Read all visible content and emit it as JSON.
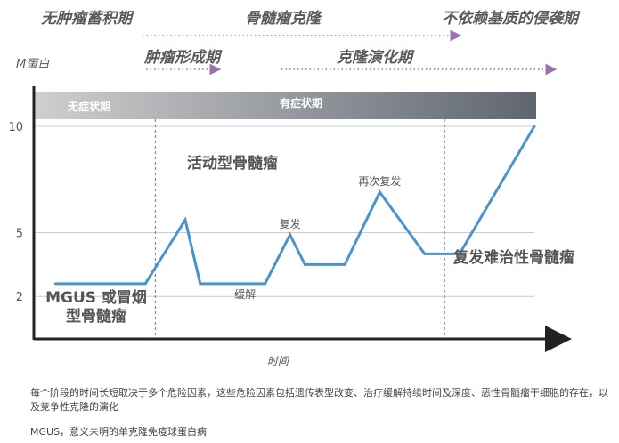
{
  "phases_row1": [
    {
      "label": "无肿瘤蓄积期"
    },
    {
      "label": "骨髓瘤克隆"
    },
    {
      "label": "不依赖基质的侵袭期"
    }
  ],
  "phases_row2": [
    {
      "label": "肿瘤形成期"
    },
    {
      "label": "克隆演化期"
    }
  ],
  "band": {
    "left": "无症状期",
    "right": "有症状期",
    "color_left": "#cfcfcf",
    "color_right": "#5f6670"
  },
  "colors": {
    "line": "#4a94cc",
    "arrow": "#9b6fb5",
    "axis": "#222222",
    "grid": "#cccccc"
  },
  "chart_data": {
    "type": "line",
    "ylabel": "M蛋白",
    "xlabel": "时间",
    "yticks": [
      2,
      5,
      10
    ],
    "ylim": [
      0,
      11
    ],
    "xlim": [
      0,
      100
    ],
    "series": [
      {
        "x": [
          4,
          22,
          30,
          33,
          46,
          51,
          54,
          62,
          69,
          78,
          85,
          100
        ],
        "y": [
          2.6,
          2.6,
          5.6,
          2.6,
          2.6,
          4.9,
          3.5,
          3.5,
          6.9,
          4.0,
          4.0,
          10.0
        ]
      }
    ],
    "dividers_x": [
      24,
      82
    ],
    "annotations": [
      {
        "text": "缓解",
        "x": 42,
        "y": 2.6
      },
      {
        "text": "复发",
        "x": 51,
        "y": 4.9
      },
      {
        "text": "再次复发",
        "x": 69,
        "y": 6.9
      }
    ],
    "stages": [
      {
        "lines": [
          "MGUS 或冒烟",
          "型骨髓瘤"
        ]
      },
      {
        "lines": [
          "活动型骨髓瘤"
        ]
      },
      {
        "lines": [
          "复发难治性骨髓瘤"
        ]
      }
    ]
  },
  "footnote": "每个阶段的时间长短取决于多个危险因素，这些危险因素包括遗传表型改变、治疗缓解持续时间及深度、恶性骨髓瘤干细胞的存在，以及竞争性克隆的演化",
  "abbrev": "MGUS，意义未明的单克隆免疫球蛋白病"
}
